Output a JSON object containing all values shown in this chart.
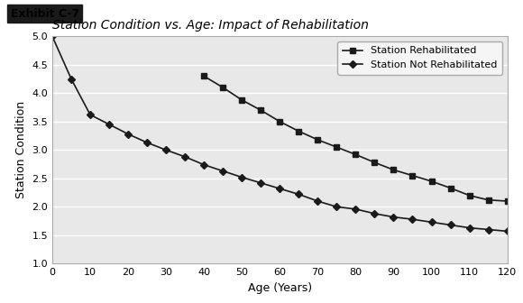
{
  "title": "Station Condition vs. Age: Impact of Rehabilitation",
  "exhibit_label": "Exhibit C-7",
  "xlabel": "Age (Years)",
  "ylabel": "Station Condition",
  "xlim": [
    0,
    120
  ],
  "ylim": [
    1.0,
    5.0
  ],
  "xticks": [
    0,
    10,
    20,
    30,
    40,
    50,
    60,
    70,
    80,
    90,
    100,
    110,
    120
  ],
  "yticks": [
    1.0,
    1.5,
    2.0,
    2.5,
    3.0,
    3.5,
    4.0,
    4.5,
    5.0
  ],
  "not_rehab_x": [
    0,
    5,
    10,
    15,
    20,
    25,
    30,
    35,
    40,
    45,
    50,
    55,
    60,
    65,
    70,
    75,
    80,
    85,
    90,
    95,
    100,
    105,
    110,
    115,
    120
  ],
  "not_rehab_y": [
    5.0,
    4.25,
    3.62,
    3.45,
    3.28,
    3.13,
    3.0,
    2.88,
    2.74,
    2.63,
    2.52,
    2.42,
    2.32,
    2.22,
    2.1,
    2.0,
    1.96,
    1.88,
    1.82,
    1.78,
    1.73,
    1.68,
    1.63,
    1.6,
    1.57
  ],
  "rehab_x": [
    40,
    45,
    50,
    55,
    60,
    65,
    70,
    75,
    80,
    85,
    90,
    95,
    100,
    105,
    110,
    115,
    120
  ],
  "rehab_y": [
    4.3,
    4.1,
    3.88,
    3.7,
    3.5,
    3.33,
    3.18,
    3.05,
    2.92,
    2.78,
    2.65,
    2.55,
    2.45,
    2.33,
    2.2,
    2.12,
    2.1
  ],
  "line_color": "#1a1a1a",
  "marker_color": "#1a1a1a",
  "background_color": "#e8e8e8",
  "plot_bg_color": "#e8e8e8",
  "outer_bg_color": "#ffffff",
  "grid_color": "#ffffff",
  "legend_rehab": "Station Rehabilitated",
  "legend_not_rehab": "Station Not Rehabilitated",
  "title_fontsize": 10,
  "axis_label_fontsize": 9,
  "tick_fontsize": 8,
  "legend_fontsize": 8,
  "exhibit_fontsize": 9
}
